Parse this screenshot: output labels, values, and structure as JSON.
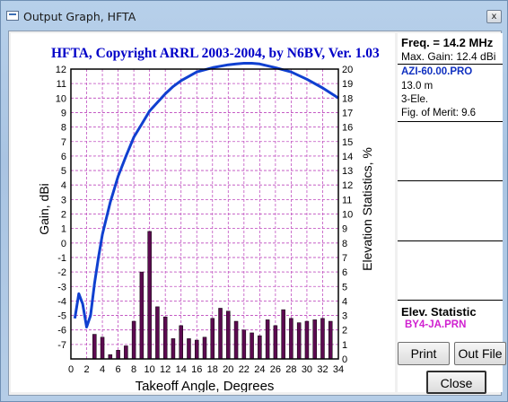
{
  "window": {
    "title": "Output Graph, HFTA",
    "close_glyph": "x"
  },
  "info_panel": {
    "freq": "Freq. = 14.2 MHz",
    "max_gain": "Max. Gain: 12.4 dBi",
    "file": "AZI-60.00.PRO",
    "height": "13.0 m",
    "elements": "3-Ele.",
    "merit": "Fig. of Merit:  9.6",
    "elev_label": "Elev. Statistic",
    "elev_file": "BY4-JA.PRN"
  },
  "buttons": {
    "print": "Print",
    "outfile": "Out File",
    "close": "Close"
  },
  "colors": {
    "title_blue": "#0000c8",
    "curve": "#1040d0",
    "bars": "#5c0a50",
    "grid": "#c050c0",
    "elev_file": "#d020d0"
  },
  "chart_data": {
    "type": "line",
    "title": "HFTA, Copyright ARRL 2003-2004, by N6BV, Ver. 1.03",
    "xlabel": "Takeoff Angle, Degrees",
    "ylabel": "Gain, dBi",
    "y2label": "Elevation Statistics, %",
    "xlim": [
      0,
      34
    ],
    "ylim": [
      -8,
      12
    ],
    "y2lim": [
      0,
      20
    ],
    "x_ticks": [
      0,
      2,
      4,
      6,
      8,
      10,
      12,
      14,
      16,
      18,
      20,
      22,
      24,
      26,
      28,
      30,
      32,
      34
    ],
    "y_ticks": [
      12,
      11,
      10,
      9,
      8,
      7,
      6,
      5,
      4,
      3,
      2,
      1,
      0,
      -1,
      -2,
      -3,
      -4,
      -5,
      -6,
      -7
    ],
    "y2_ticks": [
      20,
      19,
      18,
      17,
      16,
      15,
      14,
      13,
      12,
      11,
      10,
      9,
      8,
      7,
      6,
      5,
      4,
      3,
      2,
      1,
      0
    ],
    "series": [
      {
        "kind": "gain",
        "x": [
          0.5,
          1.0,
          1.5,
          2.0,
          2.5,
          3.0,
          3.5,
          4.0,
          5.0,
          6.0,
          7.0,
          8.0,
          9.0,
          10.0,
          11.0,
          12.0,
          13.0,
          14.0,
          16.0,
          18.0,
          20.0,
          21.0,
          22.0,
          23.0,
          24.0,
          26.0,
          28.0,
          30.0,
          32.0,
          34.0
        ],
        "y": [
          -5.2,
          -3.5,
          -4.2,
          -5.8,
          -5.0,
          -2.8,
          -1.0,
          0.6,
          2.8,
          4.6,
          6.0,
          7.3,
          8.2,
          9.1,
          9.7,
          10.3,
          10.8,
          11.2,
          11.8,
          12.1,
          12.3,
          12.35,
          12.4,
          12.4,
          12.35,
          12.1,
          11.8,
          11.3,
          10.7,
          10.0
        ]
      },
      {
        "kind": "elevation_statistics",
        "x": [
          1,
          2,
          3,
          4,
          5,
          6,
          7,
          8,
          9,
          10,
          11,
          12,
          13,
          14,
          15,
          16,
          17,
          18,
          19,
          20,
          21,
          22,
          23,
          24,
          25,
          26,
          27,
          28,
          29,
          30,
          31,
          32,
          33
        ],
        "y": [
          0,
          0,
          1.7,
          1.5,
          0.3,
          0.6,
          0.9,
          2.6,
          6.0,
          8.8,
          3.6,
          2.9,
          1.4,
          2.3,
          1.4,
          1.3,
          1.5,
          2.8,
          3.5,
          3.3,
          2.6,
          2.0,
          1.8,
          1.6,
          2.7,
          2.3,
          3.4,
          2.8,
          2.5,
          2.6,
          2.7,
          2.8,
          2.6
        ]
      }
    ]
  }
}
